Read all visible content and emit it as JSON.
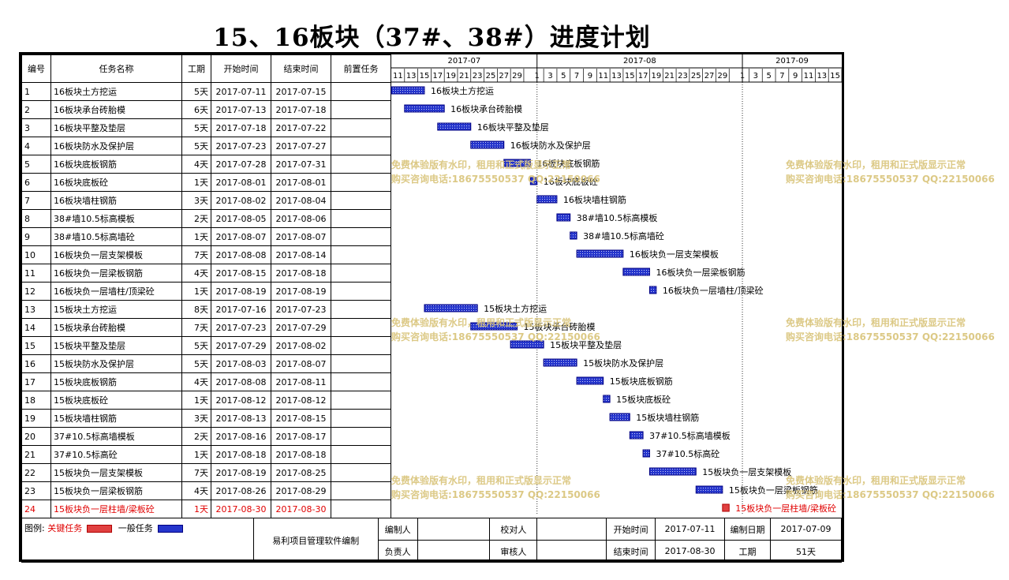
{
  "title": "15、16板块（37#、38#）进度计划",
  "headers": {
    "id": "编号",
    "name": "任务名称",
    "dur": "工期",
    "start": "开始时间",
    "end": "结束时间",
    "pred": "前置任务"
  },
  "timeline": {
    "months": [
      {
        "label": "2017-07",
        "days": [
          "11",
          "13",
          "15",
          "17",
          "19",
          "21",
          "23",
          "25",
          "27",
          "29"
        ]
      },
      {
        "label": "2017-08",
        "days": [
          "1",
          "3",
          "5",
          "7",
          "9",
          "11",
          "13",
          "15",
          "17",
          "19",
          "21",
          "23",
          "25",
          "27",
          "29"
        ]
      },
      {
        "label": "2017-09",
        "days": [
          "1",
          "3",
          "5",
          "7",
          "9",
          "11",
          "13",
          "15"
        ]
      }
    ]
  },
  "tasks": [
    {
      "id": "1",
      "name": "16板块土方挖运",
      "dur": "5天",
      "start": "2017-07-11",
      "end": "2017-07-15",
      "critical": false
    },
    {
      "id": "2",
      "name": "16板块承台砖胎模",
      "dur": "6天",
      "start": "2017-07-13",
      "end": "2017-07-18",
      "critical": false
    },
    {
      "id": "3",
      "name": "16板块平整及垫层",
      "dur": "5天",
      "start": "2017-07-18",
      "end": "2017-07-22",
      "critical": false
    },
    {
      "id": "4",
      "name": "16板块防水及保护层",
      "dur": "5天",
      "start": "2017-07-23",
      "end": "2017-07-27",
      "critical": false
    },
    {
      "id": "5",
      "name": "16板块底板钢筋",
      "dur": "4天",
      "start": "2017-07-28",
      "end": "2017-07-31",
      "critical": false
    },
    {
      "id": "6",
      "name": "16板块底板砼",
      "dur": "1天",
      "start": "2017-08-01",
      "end": "2017-08-01",
      "critical": false
    },
    {
      "id": "7",
      "name": "16板块墙柱钢筋",
      "dur": "3天",
      "start": "2017-08-02",
      "end": "2017-08-04",
      "critical": false
    },
    {
      "id": "8",
      "name": "38#墙10.5标高模板",
      "dur": "2天",
      "start": "2017-08-05",
      "end": "2017-08-06",
      "critical": false
    },
    {
      "id": "9",
      "name": "38#墙10.5标高墙砼",
      "dur": "1天",
      "start": "2017-08-07",
      "end": "2017-08-07",
      "critical": false
    },
    {
      "id": "10",
      "name": "16板块负一层支架模板",
      "dur": "7天",
      "start": "2017-08-08",
      "end": "2017-08-14",
      "critical": false
    },
    {
      "id": "11",
      "name": "16板块负一层梁板钢筋",
      "dur": "4天",
      "start": "2017-08-15",
      "end": "2017-08-18",
      "critical": false
    },
    {
      "id": "12",
      "name": "16板块负一层墙柱/顶梁砼",
      "dur": "1天",
      "start": "2017-08-19",
      "end": "2017-08-19",
      "critical": false
    },
    {
      "id": "13",
      "name": "15板块土方挖运",
      "dur": "8天",
      "start": "2017-07-16",
      "end": "2017-07-23",
      "critical": false
    },
    {
      "id": "14",
      "name": "15板块承台砖胎模",
      "dur": "7天",
      "start": "2017-07-23",
      "end": "2017-07-29",
      "critical": false
    },
    {
      "id": "15",
      "name": "15板块平整及垫层",
      "dur": "5天",
      "start": "2017-07-29",
      "end": "2017-08-02",
      "critical": false
    },
    {
      "id": "16",
      "name": "15板块防水及保护层",
      "dur": "5天",
      "start": "2017-08-03",
      "end": "2017-08-07",
      "critical": false
    },
    {
      "id": "17",
      "name": "15板块底板钢筋",
      "dur": "4天",
      "start": "2017-08-08",
      "end": "2017-08-11",
      "critical": false
    },
    {
      "id": "18",
      "name": "15板块底板砼",
      "dur": "1天",
      "start": "2017-08-12",
      "end": "2017-08-12",
      "critical": false
    },
    {
      "id": "19",
      "name": "15板块墙柱钢筋",
      "dur": "3天",
      "start": "2017-08-13",
      "end": "2017-08-15",
      "critical": false
    },
    {
      "id": "20",
      "name": "37#10.5标高墙模板",
      "dur": "2天",
      "start": "2017-08-16",
      "end": "2017-08-17",
      "critical": false
    },
    {
      "id": "21",
      "name": "37#10.5标高砼",
      "dur": "1天",
      "start": "2017-08-18",
      "end": "2017-08-18",
      "critical": false
    },
    {
      "id": "22",
      "name": "15板块负一层支架模板",
      "dur": "7天",
      "start": "2017-08-19",
      "end": "2017-08-25",
      "critical": false
    },
    {
      "id": "23",
      "name": "15板块负一层梁板钢筋",
      "dur": "4天",
      "start": "2017-08-26",
      "end": "2017-08-29",
      "critical": false
    },
    {
      "id": "24",
      "name": "15板块负一层柱墙/梁板砼",
      "dur": "1天",
      "start": "2017-08-30",
      "end": "2017-08-30",
      "critical": true
    }
  ],
  "footer": {
    "legend_label": "图例:",
    "legend_critical": "关键任务",
    "legend_normal": "一般任务",
    "software": "易利项目管理软件编制",
    "compiler_label": "编制人",
    "reviewer_label": "校对人",
    "owner_label": "负责人",
    "auditor_label": "审核人",
    "start_label": "开始时间",
    "start_value": "2017-07-11",
    "end_label": "结束时间",
    "end_value": "2017-08-30",
    "date_label": "编制日期",
    "date_value": "2017-07-09",
    "period_label": "工期",
    "period_value": "51天"
  },
  "watermark": {
    "line1": "免费体验版有水印，租用和正式版显示正常",
    "line2": "购买咨询电话:18675550537 QQ:22150066"
  },
  "colors": {
    "bar_normal": "#2535cc",
    "bar_critical": "#e04040",
    "critical_text": "#e00000",
    "watermark": "#d9c47a"
  }
}
